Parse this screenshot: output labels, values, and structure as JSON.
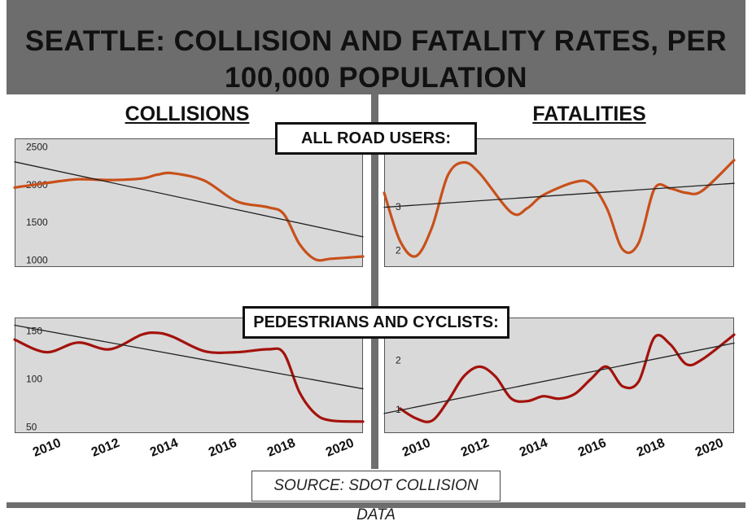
{
  "title": "SEATTLE: COLLISION AND FATALITY RATES, PER 100,000 POPULATION",
  "columns": {
    "left": "COLLISIONS",
    "right": "FATALITIES"
  },
  "rows": {
    "top": "ALL ROAD USERS:",
    "bottom": "PEDESTRIANS AND CYCLISTS:"
  },
  "source": "SOURCE: SDOT COLLISION DATA",
  "x_ticks": [
    "2010",
    "2012",
    "2014",
    "2016",
    "2018",
    "2020"
  ],
  "colors": {
    "orange": "#c8501a",
    "red": "#a3120c",
    "panel": "#d9d9d9",
    "trend": "#222222"
  },
  "chart_data": [
    {
      "id": "collisions-all",
      "type": "line",
      "xlim": [
        2010,
        2021
      ],
      "ylim": [
        900,
        2600
      ],
      "yticks": [
        1000,
        1500,
        2000,
        2500
      ],
      "x": [
        2010,
        2011,
        2012,
        2013,
        2014,
        2014.5,
        2015,
        2016,
        2017,
        2018,
        2018.5,
        2019,
        2019.5,
        2020,
        2021
      ],
      "series": [
        {
          "color": "orange",
          "values": [
            1950,
            2010,
            2060,
            2050,
            2070,
            2120,
            2140,
            2040,
            1770,
            1690,
            1600,
            1200,
            1000,
            1010,
            1040
          ]
        },
        {
          "color": "trend",
          "values": [
            2290,
            2200,
            2110,
            2020,
            1930,
            1885,
            1840,
            1750,
            1660,
            1570,
            1525,
            1480,
            1435,
            1390,
            1300
          ]
        }
      ]
    },
    {
      "id": "fatalities-all",
      "type": "line",
      "xlim": [
        2010,
        2021
      ],
      "ylim": [
        1.6,
        4.55
      ],
      "yticks": [
        2,
        3
      ],
      "x": [
        2010,
        2010.5,
        2011,
        2011.5,
        2012,
        2012.5,
        2013,
        2014,
        2014.5,
        2015,
        2016,
        2016.5,
        2017,
        2017.5,
        2018,
        2018.5,
        2019,
        2019.5,
        2020,
        2021
      ],
      "series": [
        {
          "color": "orange",
          "values": [
            3.3,
            2.2,
            1.85,
            2.5,
            3.7,
            4.0,
            3.75,
            2.85,
            2.95,
            3.25,
            3.55,
            3.5,
            2.95,
            2.0,
            2.15,
            3.4,
            3.4,
            3.3,
            3.35,
            4.05
          ]
        },
        {
          "color": "trend",
          "values": [
            2.97,
            3.0,
            3.03,
            3.05,
            3.08,
            3.1,
            3.13,
            3.18,
            3.2,
            3.23,
            3.28,
            3.3,
            3.33,
            3.35,
            3.38,
            3.4,
            3.43,
            3.45,
            3.48,
            3.52
          ]
        }
      ]
    },
    {
      "id": "collisions-ped",
      "type": "line",
      "xlim": [
        2010,
        2021
      ],
      "ylim": [
        43,
        163
      ],
      "yticks": [
        50,
        100,
        150
      ],
      "x": [
        2010,
        2011,
        2012,
        2013,
        2014,
        2014.5,
        2015,
        2016,
        2017,
        2018,
        2018.5,
        2019,
        2019.5,
        2020,
        2021
      ],
      "series": [
        {
          "color": "red",
          "values": [
            140,
            127,
            137,
            130,
            145,
            147,
            143,
            128,
            127,
            130,
            126,
            85,
            63,
            56,
            55
          ]
        },
        {
          "color": "trend",
          "values": [
            155,
            149,
            143,
            137,
            131,
            128,
            125,
            119,
            113,
            107,
            104,
            101,
            98,
            95,
            89
          ]
        }
      ]
    },
    {
      "id": "fatalities-ped",
      "type": "line",
      "xlim": [
        2010,
        2021
      ],
      "ylim": [
        0.5,
        2.85
      ],
      "yticks": [
        1,
        2
      ],
      "x": [
        2010,
        2010.5,
        2011,
        2011.5,
        2012,
        2012.5,
        2013,
        2013.5,
        2014,
        2014.5,
        2015,
        2015.5,
        2016,
        2016.5,
        2017,
        2017.5,
        2018,
        2018.5,
        2019,
        2019.5,
        2020,
        2021
      ],
      "series": [
        {
          "color": "red",
          "values": [
            null,
            1.0,
            0.8,
            0.75,
            1.15,
            1.65,
            1.85,
            1.65,
            1.2,
            1.15,
            1.25,
            1.2,
            1.3,
            1.6,
            1.85,
            1.45,
            1.55,
            2.45,
            2.3,
            1.9,
            2.0,
            2.5
          ]
        },
        {
          "color": "trend",
          "values": [
            0.9,
            0.97,
            1.03,
            1.1,
            1.16,
            1.23,
            1.29,
            1.36,
            1.42,
            1.49,
            1.55,
            1.62,
            1.68,
            1.75,
            1.81,
            1.88,
            1.94,
            2.01,
            2.07,
            2.14,
            2.2,
            2.33
          ]
        }
      ]
    }
  ]
}
